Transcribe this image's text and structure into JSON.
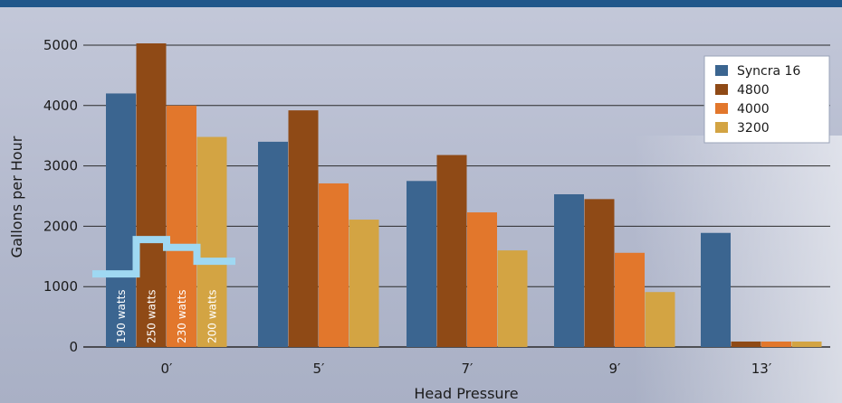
{
  "chart_data": {
    "type": "bar",
    "xlabel": "Head Pressure",
    "ylabel": "Gallons per Hour",
    "ylim": [
      0,
      5000
    ],
    "yticks": [
      0,
      1000,
      2000,
      3000,
      4000,
      5000
    ],
    "categories": [
      "0′",
      "5′",
      "7′",
      "9′",
      "13′"
    ],
    "series": [
      {
        "name": "Syncra 16",
        "color": "#3b6590",
        "values": [
          4200,
          3400,
          2750,
          2530,
          1890
        ]
      },
      {
        "name": "4800",
        "color": "#8f4a16",
        "values": [
          5030,
          3920,
          3180,
          2450,
          90
        ]
      },
      {
        "name": "4000",
        "color": "#e2772c",
        "values": [
          4000,
          2710,
          2230,
          1560,
          90
        ]
      },
      {
        "name": "3200",
        "color": "#d3a443",
        "values": [
          3480,
          2110,
          1600,
          910,
          90
        ]
      }
    ],
    "legend_position": "top-right",
    "grid": true,
    "annotations": {
      "power_line_color": "#9fd8f2",
      "labels": [
        "190 watts",
        "250 watts",
        "230 watts",
        "200 watts"
      ],
      "power_line_values": [
        1210,
        1780,
        1650,
        1420
      ]
    },
    "colors": {
      "header_band": "#20578a",
      "background": "#b7bdd0",
      "grid": "#2b2b2b"
    }
  }
}
